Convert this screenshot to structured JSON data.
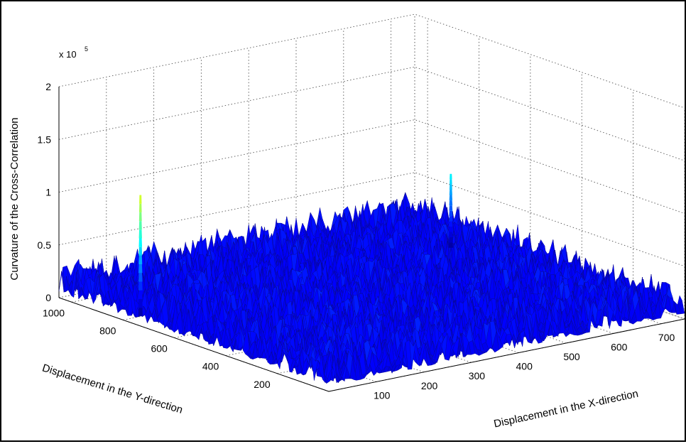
{
  "chart_data": {
    "type": "surface",
    "title": "",
    "zlabel": "Curvature of the Cross-Correlation",
    "xlabel": "Displacement in the X-direction",
    "ylabel": "Displacement in the Y-direction",
    "z_exponent_base": "x 10",
    "z_exponent_power": "5",
    "z_ticks": [
      "0",
      "0.5",
      "1",
      "1.5",
      "2"
    ],
    "z_tick_values": [
      0,
      0.5,
      1,
      1.5,
      2
    ],
    "x_ticks": [
      "100",
      "200",
      "300",
      "400",
      "500",
      "600",
      "700"
    ],
    "x_tick_values": [
      100,
      200,
      300,
      400,
      500,
      600,
      700
    ],
    "y_ticks": [
      "200",
      "400",
      "600",
      "800",
      "1000"
    ],
    "y_tick_values": [
      200,
      400,
      600,
      800,
      1000
    ],
    "xlim": [
      0,
      750
    ],
    "ylim": [
      0,
      1050
    ],
    "zlim": [
      0,
      2
    ],
    "grid": true,
    "colormap": "jet",
    "baseline_noise_range": [
      0.05,
      0.35
    ],
    "peaks": [
      {
        "x": 20,
        "y": 760,
        "z": 1.2
      },
      {
        "x": 690,
        "y": 800,
        "z": 0.75
      }
    ]
  }
}
